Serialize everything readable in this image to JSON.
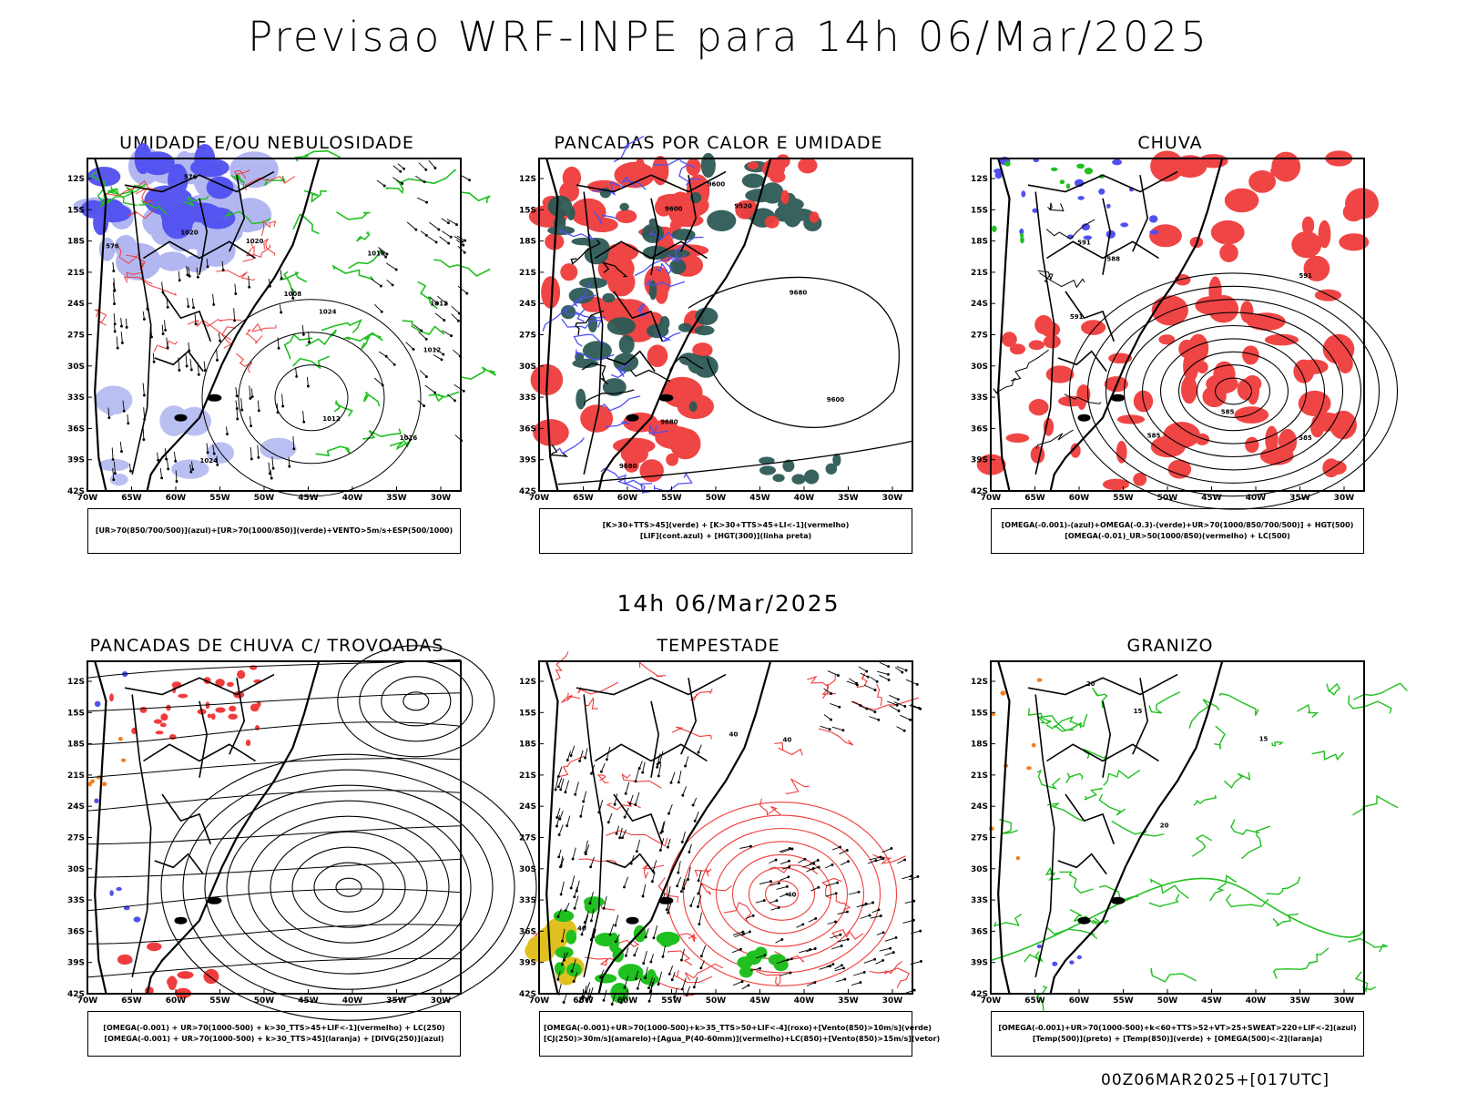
{
  "title": "Previsao WRF-INPE  para 14h 06/Mar/2025",
  "middle_date": "14h 06/Mar/2025",
  "footer": "00Z06MAR2025+[017UTC]",
  "axis": {
    "lat_ticks": [
      "12S",
      "15S",
      "18S",
      "21S",
      "24S",
      "27S",
      "30S",
      "33S",
      "36S",
      "39S",
      "42S"
    ],
    "lon_ticks": [
      "70W",
      "65W",
      "60W",
      "55W",
      "50W",
      "45W",
      "40W",
      "35W",
      "30W"
    ]
  },
  "panels": [
    {
      "title": "UMIDADE E/OU NEBULOSIDADE",
      "legend": [
        "[UR>70(850/700/500)](azul)+[UR>70(1000/850)](verde)+VENTO>5m/s+ESP(500/1000)"
      ],
      "labels": [
        "1012",
        "1012",
        "1016",
        "1020",
        "1020",
        "1024",
        "1008",
        "1016",
        "1012",
        "1024",
        "576",
        "576"
      ]
    },
    {
      "title": "PANCADAS POR CALOR E UMIDADE",
      "legend": [
        "[K>30+TTS>45](verde) + [K>30+TTS>45+LI<-1](vermelho)",
        "[LIF](cont.azul) + [HGT(300)](linha preta)"
      ],
      "labels": [
        "9600",
        "9600",
        "9680",
        "9680",
        "9600",
        "9520",
        "9680"
      ]
    },
    {
      "title": "CHUVA",
      "legend": [
        "[OMEGA(-0.001)-(azul)+OMEGA(-0.3)-(verde)+UR>70(1000/850/700/500)] + HGT(500)",
        "[OMEGA(-0.01)_UR>50(1000/850)(vermelho) + LC(500)"
      ],
      "labels": [
        "585",
        "591",
        "591",
        "585",
        "585",
        "591",
        "588"
      ]
    },
    {
      "title": "PANCADAS DE CHUVA C/ TROVOADAS",
      "legend": [
        "[OMEGA(-0.001) + UR>70(1000-500) + k>30_TTS>45+LIF<-1](vermelho) + LC(250)",
        "[OMEGA(-0.001) + UR>70(1000-500) + k>30_TTS>45](laranja) + [DIVG(250)](azul)"
      ],
      "labels": []
    },
    {
      "title": "TEMPESTADE",
      "legend": [
        "[OMEGA(-0.001)+UR>70(1000-500)+k>35_TTS>50+LIF<-4](roxo)+[Vento(850)>10m/s](verde)",
        "[CJ(250)>30m/s](amarelo)+[Agua_P(40-60mm)](vermelho)+LC(850)+[Vento(850)>15m/s](vetor)"
      ],
      "labels": [
        "40",
        "40",
        "40",
        "40"
      ]
    },
    {
      "title": "GRANIZO",
      "legend": [
        "[OMEGA(-0.001)+UR>70(1000-500)+k<60+TTS>52+VT>25+SWEAT>220+LIF<-2](azul)",
        "[Temp(500)](preto) + [Temp(850)](verde) + [OMEGA(500)<-2](laranja)"
      ],
      "labels": [
        "15",
        "20",
        "15",
        "20"
      ]
    }
  ],
  "colors": {
    "blue_humidity": "#5050f0",
    "light_blue": "#aab0f0",
    "green_contour": "#20c020",
    "red_fill": "#f03c3c",
    "dark_teal": "#2d5a55",
    "orange": "#f08020",
    "yellow": "#e0c020"
  }
}
